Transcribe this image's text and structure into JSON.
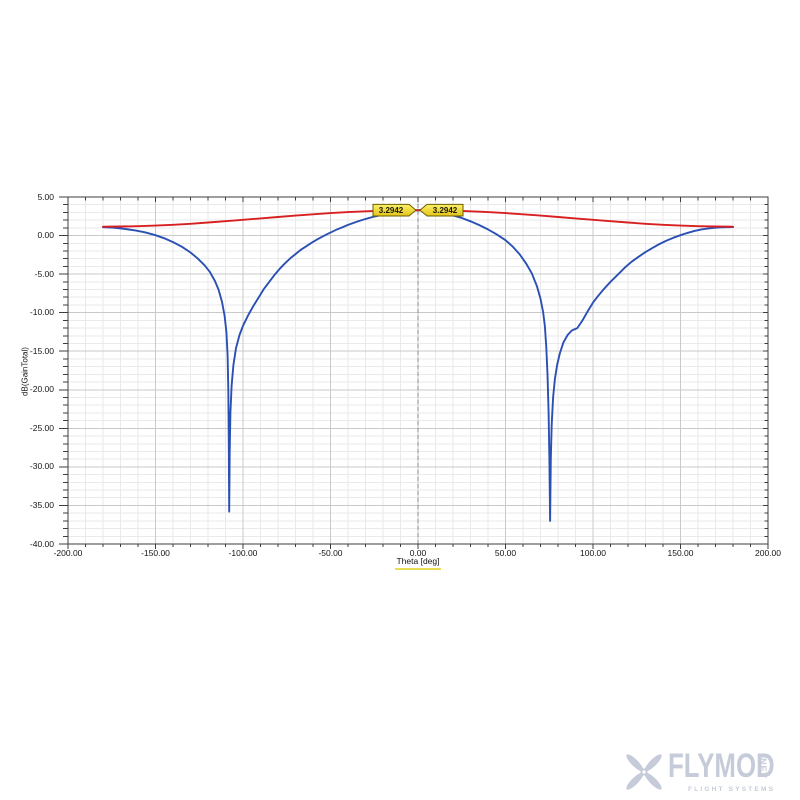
{
  "page": {
    "background": "#ffffff"
  },
  "chart_data": {
    "type": "line",
    "title": "",
    "xlabel": "Theta [deg]",
    "ylabel": "dB(GainTotal)",
    "xlim": [
      -200,
      200
    ],
    "ylim": [
      -40,
      5
    ],
    "x_major_step": 50,
    "x_minor_step": 10,
    "y_major_step": 5,
    "y_minor_step": 1,
    "grid": true,
    "x_tick_labels": [
      "-200.00",
      "-150.00",
      "-100.00",
      "-50.00",
      "0.00",
      "50.00",
      "100.00",
      "150.00",
      "200.00"
    ],
    "y_tick_labels": [
      "5.00",
      "0.00",
      "-5.00",
      "-10.00",
      "-15.00",
      "-20.00",
      "-25.00",
      "-30.00",
      "-35.00",
      "-40.00"
    ],
    "zero_reference_line_x": 0,
    "axis_color": "#3d3d3d",
    "major_grid_color": "#c9c9c9",
    "minor_grid_color": "#eaeaea",
    "zero_line_color": "#8a8a8a",
    "xlabel_highlight_color": "#e8de56",
    "marker_fill_top": "#fdf06a",
    "marker_fill_bottom": "#e3c318",
    "marker_border": "#6b5f00",
    "markers": [
      {
        "label": "3.2942",
        "x": 0,
        "y": 3.2942,
        "pointer": "right"
      },
      {
        "label": "3.2942",
        "x": 0,
        "y": 3.2942,
        "pointer": "left"
      }
    ],
    "series": [
      {
        "name": "blue-trace",
        "color": "#2b50b4",
        "points": [
          [
            -180,
            1.08
          ],
          [
            -174,
            1.02
          ],
          [
            -168,
            0.88
          ],
          [
            -162,
            0.68
          ],
          [
            -156,
            0.42
          ],
          [
            -150,
            0.05
          ],
          [
            -145,
            -0.35
          ],
          [
            -140,
            -0.85
          ],
          [
            -135,
            -1.45
          ],
          [
            -130,
            -2.2
          ],
          [
            -126,
            -2.95
          ],
          [
            -122,
            -3.85
          ],
          [
            -119,
            -4.7
          ],
          [
            -116,
            -5.9
          ],
          [
            -114,
            -7.0
          ],
          [
            -112,
            -8.6
          ],
          [
            -110.5,
            -10.4
          ],
          [
            -109.5,
            -12.5
          ],
          [
            -108.8,
            -15.5
          ],
          [
            -108.4,
            -20
          ],
          [
            -108.1,
            -27
          ],
          [
            -107.9,
            -35.8
          ],
          [
            -107.6,
            -28
          ],
          [
            -107.2,
            -23
          ],
          [
            -106.5,
            -19.5
          ],
          [
            -105.5,
            -16.8
          ],
          [
            -104,
            -14.6
          ],
          [
            -102,
            -12.9
          ],
          [
            -100,
            -11.7
          ],
          [
            -97,
            -10.3
          ],
          [
            -94,
            -9.1
          ],
          [
            -91,
            -8.0
          ],
          [
            -88,
            -6.9
          ],
          [
            -85,
            -6.0
          ],
          [
            -82,
            -5.1
          ],
          [
            -79,
            -4.3
          ],
          [
            -76,
            -3.6
          ],
          [
            -73,
            -2.95
          ],
          [
            -70,
            -2.4
          ],
          [
            -67,
            -1.85
          ],
          [
            -64,
            -1.4
          ],
          [
            -61,
            -0.95
          ],
          [
            -58,
            -0.55
          ],
          [
            -55,
            -0.18
          ],
          [
            -52,
            0.18
          ],
          [
            -49,
            0.5
          ],
          [
            -46,
            0.82
          ],
          [
            -43,
            1.1
          ],
          [
            -40,
            1.38
          ],
          [
            -37,
            1.63
          ],
          [
            -34,
            1.87
          ],
          [
            -31,
            2.08
          ],
          [
            -28,
            2.28
          ],
          [
            -25,
            2.46
          ],
          [
            -22,
            2.62
          ],
          [
            -19,
            2.76
          ],
          [
            -16,
            2.88
          ],
          [
            -13,
            2.99
          ],
          [
            -10,
            3.08
          ],
          [
            -7,
            3.16
          ],
          [
            -4,
            3.25
          ],
          [
            0,
            3.2942
          ],
          [
            5,
            3.25
          ],
          [
            10,
            3.12
          ],
          [
            15,
            2.93
          ],
          [
            20,
            2.62
          ],
          [
            25,
            2.28
          ],
          [
            30,
            1.85
          ],
          [
            35,
            1.35
          ],
          [
            40,
            0.8
          ],
          [
            45,
            0.15
          ],
          [
            50,
            -0.6
          ],
          [
            54,
            -1.4
          ],
          [
            58,
            -2.4
          ],
          [
            62,
            -3.7
          ],
          [
            65,
            -4.9
          ],
          [
            68,
            -6.6
          ],
          [
            70,
            -8.2
          ],
          [
            71.5,
            -9.9
          ],
          [
            72.5,
            -11.8
          ],
          [
            73.3,
            -14.5
          ],
          [
            74,
            -18
          ],
          [
            74.6,
            -23
          ],
          [
            75.1,
            -29
          ],
          [
            75.5,
            -37
          ],
          [
            75.9,
            -29
          ],
          [
            76.4,
            -24.5
          ],
          [
            77.2,
            -21
          ],
          [
            78.2,
            -18.6
          ],
          [
            79.5,
            -16.8
          ],
          [
            81,
            -15.3
          ],
          [
            83,
            -13.9
          ],
          [
            85.5,
            -12.9
          ],
          [
            88,
            -12.3
          ],
          [
            91,
            -12.0
          ],
          [
            94,
            -11.0
          ],
          [
            97,
            -9.8
          ],
          [
            100,
            -8.7
          ],
          [
            103,
            -7.8
          ],
          [
            106,
            -7.0
          ],
          [
            110,
            -6.0
          ],
          [
            114,
            -5.1
          ],
          [
            118,
            -4.2
          ],
          [
            122,
            -3.4
          ],
          [
            126,
            -2.75
          ],
          [
            130,
            -2.15
          ],
          [
            134,
            -1.6
          ],
          [
            138,
            -1.1
          ],
          [
            142,
            -0.65
          ],
          [
            146,
            -0.28
          ],
          [
            150,
            0.05
          ],
          [
            154,
            0.35
          ],
          [
            158,
            0.6
          ],
          [
            162,
            0.8
          ],
          [
            166,
            0.93
          ],
          [
            170,
            1.02
          ],
          [
            174,
            1.07
          ],
          [
            180,
            1.1
          ]
        ]
      },
      {
        "name": "red-trace",
        "color": "#d92020",
        "points": [
          [
            -180,
            1.15
          ],
          [
            -170,
            1.17
          ],
          [
            -160,
            1.21
          ],
          [
            -150,
            1.29
          ],
          [
            -140,
            1.4
          ],
          [
            -130,
            1.53
          ],
          [
            -120,
            1.69
          ],
          [
            -110,
            1.86
          ],
          [
            -100,
            2.04
          ],
          [
            -90,
            2.22
          ],
          [
            -80,
            2.41
          ],
          [
            -70,
            2.59
          ],
          [
            -60,
            2.76
          ],
          [
            -50,
            2.91
          ],
          [
            -40,
            3.04
          ],
          [
            -30,
            3.15
          ],
          [
            -20,
            3.23
          ],
          [
            -10,
            3.28
          ],
          [
            0,
            3.2942
          ],
          [
            10,
            3.28
          ],
          [
            20,
            3.23
          ],
          [
            30,
            3.15
          ],
          [
            40,
            3.04
          ],
          [
            50,
            2.91
          ],
          [
            60,
            2.76
          ],
          [
            70,
            2.59
          ],
          [
            80,
            2.41
          ],
          [
            90,
            2.22
          ],
          [
            100,
            2.04
          ],
          [
            110,
            1.86
          ],
          [
            120,
            1.69
          ],
          [
            130,
            1.53
          ],
          [
            140,
            1.4
          ],
          [
            150,
            1.29
          ],
          [
            160,
            1.21
          ],
          [
            170,
            1.17
          ],
          [
            180,
            1.15
          ]
        ]
      }
    ]
  },
  "logo": {
    "brand": "FLYMOD",
    "domain": "NET",
    "tagline": "FLIGHT SYSTEMS",
    "color": "#c6cbd9",
    "icon": "propeller-icon"
  }
}
